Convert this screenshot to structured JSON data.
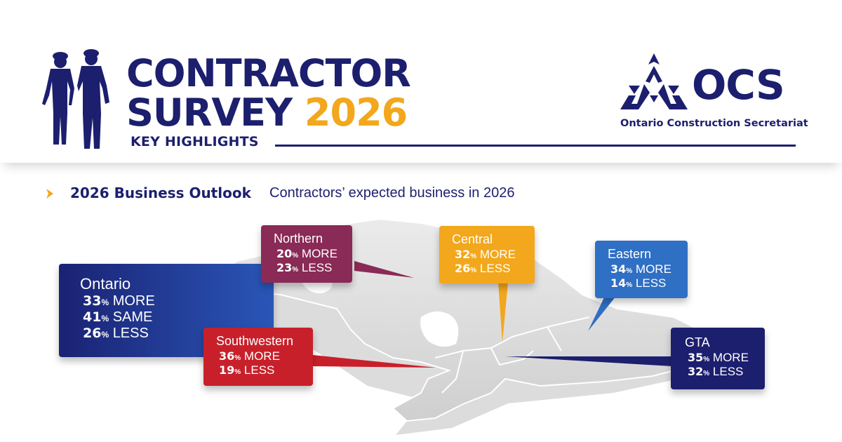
{
  "header": {
    "title_line1": "CONTRACTOR",
    "title_line2": "SURVEY",
    "title_year": "2026",
    "subtitle": "KEY HIGHLIGHTS",
    "logo_text": "OCS",
    "logo_caption": "Ontario Construction Secretariat"
  },
  "section": {
    "title": "2026 Business Outlook",
    "subtitle": "Contractors’ expected business in 2026"
  },
  "pct_sign": "%",
  "regions": {
    "ontario": {
      "name": "Ontario",
      "more": "33",
      "more_label": "MORE",
      "same": "41",
      "same_label": "SAME",
      "less": "26",
      "less_label": "LESS"
    },
    "northern": {
      "name": "Northern",
      "more": "20",
      "more_label": "MORE",
      "less": "23",
      "less_label": "LESS"
    },
    "central": {
      "name": "Central",
      "more": "32",
      "more_label": "MORE",
      "less": "26",
      "less_label": "LESS"
    },
    "eastern": {
      "name": "Eastern",
      "more": "34",
      "more_label": "MORE",
      "less": "14",
      "less_label": "LESS"
    },
    "southwestern": {
      "name": "Southwestern",
      "more": "36",
      "more_label": "MORE",
      "less": "19",
      "less_label": "LESS"
    },
    "gta": {
      "name": "GTA",
      "more": "35",
      "more_label": "MORE",
      "less": "32",
      "less_label": "LESS"
    }
  },
  "colors": {
    "navy": "#1c1f6e",
    "gold": "#f2a71c",
    "northern": "#8a2a56",
    "central": "#f2a71c",
    "eastern": "#2f6fc4",
    "southwestern": "#c8202a",
    "gta": "#1c1f6e"
  },
  "icons": {
    "workers": "construction-workers-silhouette-icon",
    "logo": "ocs-triangle-logo-icon",
    "chevron": "chevron-right-icon"
  }
}
